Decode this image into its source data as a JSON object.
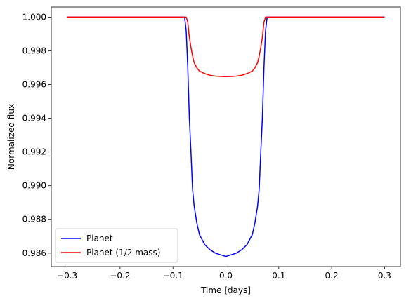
{
  "chart_data": {
    "type": "line",
    "title": "",
    "xlabel": "Time [days]",
    "ylabel": "Normalized flux",
    "xlim": [
      -0.33,
      0.33
    ],
    "ylim": [
      0.9852,
      1.0006
    ],
    "xticks": [
      -0.3,
      -0.2,
      -0.1,
      0.0,
      0.1,
      0.2,
      0.3
    ],
    "xtick_labels": [
      "−0.3",
      "−0.2",
      "−0.1",
      "0.0",
      "0.1",
      "0.2",
      "0.3"
    ],
    "yticks": [
      0.986,
      0.988,
      0.99,
      0.992,
      0.994,
      0.996,
      0.998,
      1.0
    ],
    "ytick_labels": [
      "0.986",
      "0.988",
      "0.990",
      "0.992",
      "0.994",
      "0.996",
      "0.998",
      "1.000"
    ],
    "grid": false,
    "legend_position": "lower-left",
    "series": [
      {
        "name": "Planet",
        "color": "#0000ff",
        "x": [
          -0.3,
          -0.078,
          -0.075,
          -0.072,
          -0.069,
          -0.066,
          -0.063,
          -0.06,
          -0.055,
          -0.05,
          -0.04,
          -0.03,
          -0.02,
          -0.01,
          0.0,
          0.01,
          0.02,
          0.03,
          0.04,
          0.05,
          0.055,
          0.06,
          0.063,
          0.066,
          0.069,
          0.072,
          0.075,
          0.078,
          0.3
        ],
        "y": [
          1.0,
          1.0,
          0.9992,
          0.997,
          0.994,
          0.992,
          0.9898,
          0.9888,
          0.9878,
          0.9871,
          0.9865,
          0.9862,
          0.986,
          0.9859,
          0.9858,
          0.9859,
          0.986,
          0.9862,
          0.9865,
          0.9871,
          0.9878,
          0.9888,
          0.9898,
          0.992,
          0.994,
          0.997,
          0.9992,
          1.0,
          1.0
        ]
      },
      {
        "name": "Planet (1/2 mass)",
        "color": "#ff0000",
        "x": [
          -0.3,
          -0.075,
          -0.072,
          -0.069,
          -0.066,
          -0.063,
          -0.06,
          -0.055,
          -0.05,
          -0.04,
          -0.03,
          -0.02,
          -0.01,
          0.0,
          0.01,
          0.02,
          0.03,
          0.04,
          0.05,
          0.055,
          0.06,
          0.063,
          0.066,
          0.069,
          0.072,
          0.075,
          0.3
        ],
        "y": [
          1.0,
          1.0,
          0.9997,
          0.9988,
          0.9982,
          0.9977,
          0.9973,
          0.997,
          0.9968,
          0.99665,
          0.99655,
          0.9965,
          0.99648,
          0.99647,
          0.99648,
          0.9965,
          0.99655,
          0.99665,
          0.9968,
          0.997,
          0.9973,
          0.9977,
          0.9982,
          0.9988,
          0.9997,
          1.0,
          1.0
        ]
      }
    ]
  }
}
